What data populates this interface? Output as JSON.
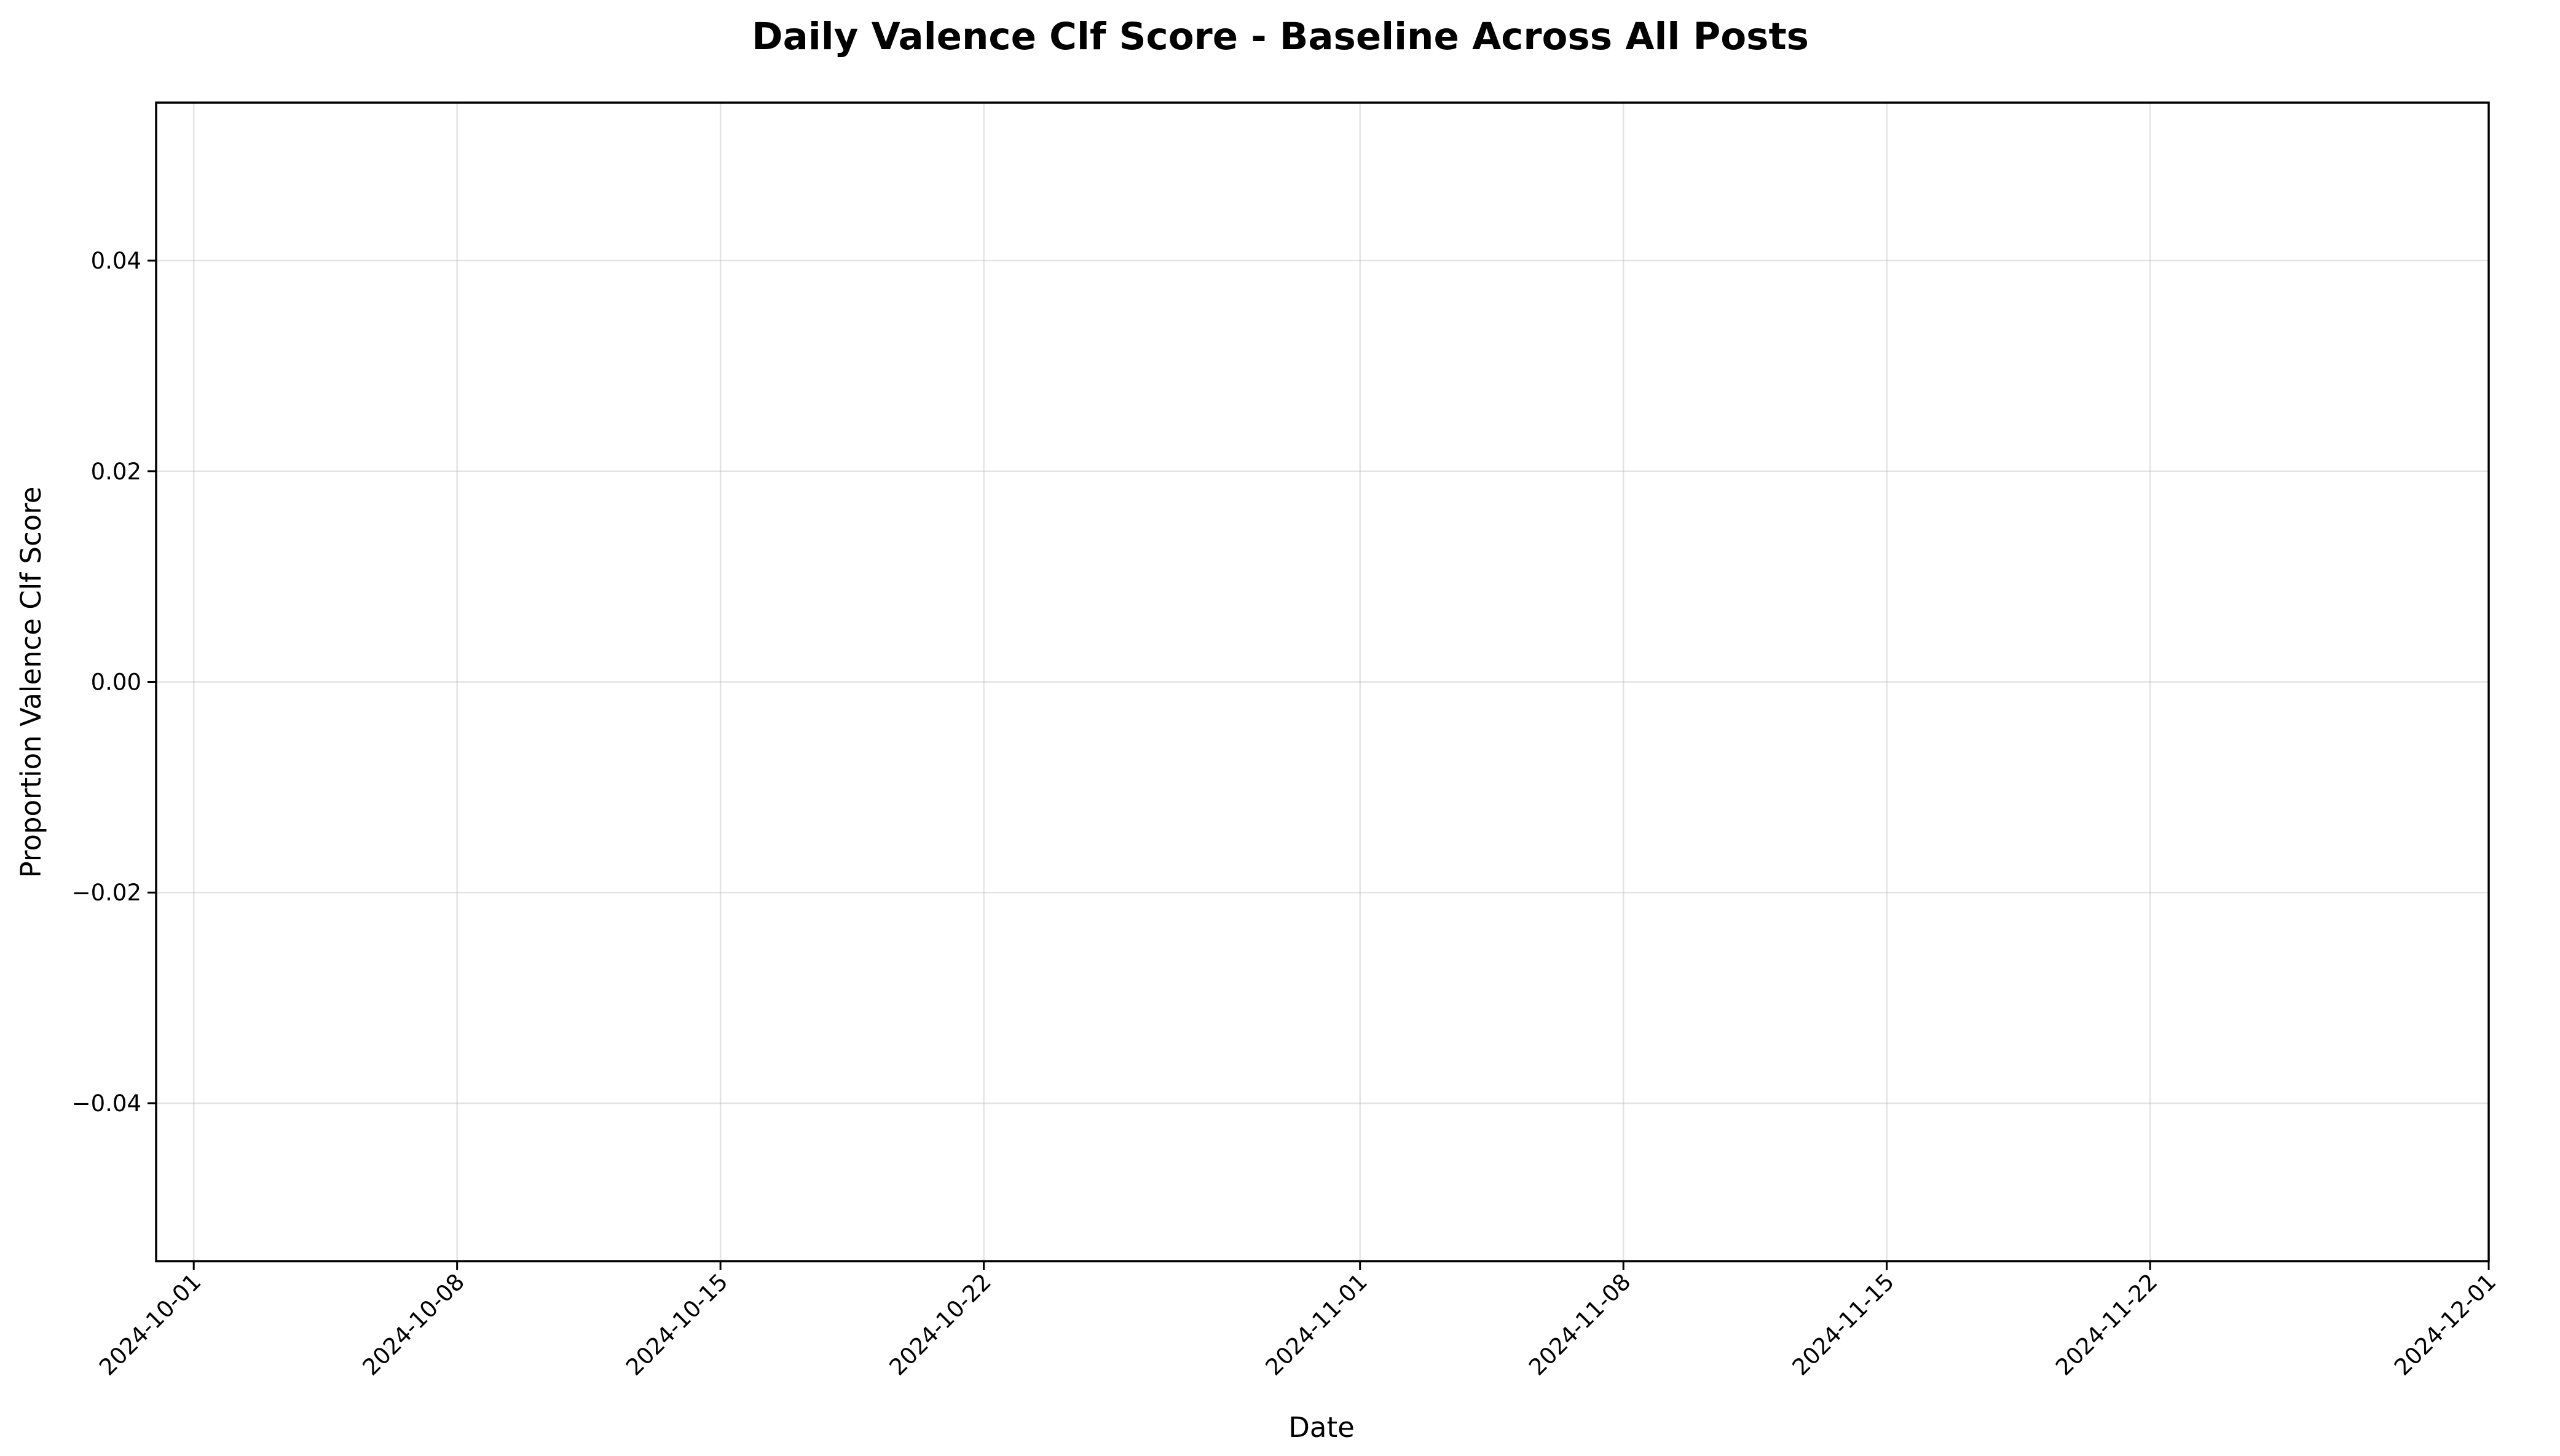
{
  "chart_data": {
    "type": "line",
    "title": "Daily Valence Clf Score - Baseline Across All Posts",
    "xlabel": "Date",
    "ylabel": "Proportion Valence Clf Score",
    "x_axis_type": "date",
    "xlim": [
      "2024-09-30",
      "2024-12-01"
    ],
    "ylim": [
      -0.055,
      0.055
    ],
    "x_ticks": [
      "2024-10-01",
      "2024-10-08",
      "2024-10-15",
      "2024-10-22",
      "2024-11-01",
      "2024-11-08",
      "2024-11-15",
      "2024-11-22",
      "2024-12-01"
    ],
    "y_ticks": [
      -0.04,
      -0.02,
      0.0,
      0.02,
      0.04
    ],
    "y_tick_labels": [
      "−0.04",
      "−0.02",
      "0.00",
      "0.02",
      "0.04"
    ],
    "grid": true,
    "series": []
  }
}
